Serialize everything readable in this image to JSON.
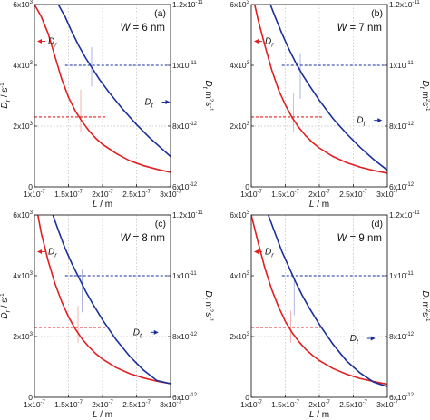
{
  "chart_data": [
    {
      "type": "line",
      "panel_label": "(a)",
      "annotation": "W = 6 nm",
      "xlabel": "L / m",
      "ylabel_left": "D_r / s^-1",
      "ylabel_right": "D_t / m^2 s^-1",
      "xlim": [
        1e-07,
        3e-07
      ],
      "ylim_left": [
        0,
        6000
      ],
      "ylim_right": [
        6e-12,
        1.2e-11
      ],
      "x_ticks": [
        {
          "m": "1",
          "e": "-7"
        },
        {
          "m": "1.5",
          "e": "-7"
        },
        {
          "m": "2",
          "e": "-7"
        },
        {
          "m": "2.5",
          "e": "-7"
        },
        {
          "m": "3",
          "e": "-7"
        }
      ],
      "y_ticks_left": [
        {
          "m": "",
          "e": "",
          "v": "0"
        },
        {
          "m": "2",
          "e": "3"
        },
        {
          "m": "4",
          "e": "3"
        },
        {
          "m": "6",
          "e": "3"
        }
      ],
      "y_ticks_right": [
        {
          "m": "6",
          "e": "-12"
        },
        {
          "m": "8",
          "e": "-12"
        },
        {
          "m": "1",
          "e": "-11"
        },
        {
          "m": "1.2",
          "e": "-11"
        }
      ],
      "series": [
        {
          "name": "D_r",
          "axis": "left",
          "color": "#e02020",
          "x": [
            1e-07,
            1.1e-07,
            1.2e-07,
            1.3e-07,
            1.4e-07,
            1.5e-07,
            1.6e-07,
            1.7e-07,
            1.8e-07,
            1.9e-07,
            2e-07,
            2.2e-07,
            2.4e-07,
            2.6e-07,
            2.8e-07,
            3e-07
          ],
          "y": [
            6000,
            5600,
            5050,
            4300,
            3550,
            2950,
            2500,
            2150,
            1850,
            1600,
            1400,
            1100,
            860,
            700,
            580,
            480
          ]
        },
        {
          "name": "D_t",
          "axis": "right",
          "color": "#1a2f9c",
          "x": [
            1.35e-07,
            1.45e-07,
            1.55e-07,
            1.65e-07,
            1.75e-07,
            1.85e-07,
            1.95e-07,
            2.1e-07,
            2.3e-07,
            2.5e-07,
            2.7e-07,
            2.9e-07,
            3e-07
          ],
          "y": [
            1.2e-11,
            1.16e-11,
            1.11e-11,
            1.065e-11,
            1.025e-11,
            9.9e-12,
            9.55e-12,
            9.1e-12,
            8.55e-12,
            8.05e-12,
            7.6e-12,
            7.2e-12,
            7e-12
          ]
        }
      ],
      "ref_lines": {
        "red_y": 2300,
        "red_x_end": 2.05e-07,
        "blue_y": 1e-11,
        "blue_x_start": 1.45e-07,
        "gray_y_left": 2000,
        "vert_red_x": 1.68e-07,
        "vert_red_top": 3200,
        "vert_blue_x": 1.84e-07,
        "vert_blue_top": 1.06e-11,
        "vert_blue_bottom": 9.3e-12
      },
      "legend": {
        "left_label": "D",
        "left_sub": "r",
        "right_label": "D",
        "right_sub": "t",
        "left_pos": {
          "x": 1.08e-07,
          "y": 4700
        },
        "right_pos": {
          "x": 2.62e-07,
          "y": 8.7e-12
        }
      }
    },
    {
      "type": "line",
      "panel_label": "(b)",
      "annotation": "W = 7 nm",
      "xlabel": "L / m",
      "ylabel_left": "",
      "ylabel_right": "D_t / m^2 s^-1",
      "xlim": [
        1e-07,
        3e-07
      ],
      "ylim_left": [
        0,
        6000
      ],
      "ylim_right": [
        6e-12,
        1.2e-11
      ],
      "x_ticks": [
        {
          "m": "1",
          "e": "-7"
        },
        {
          "m": "1.5",
          "e": "-7"
        },
        {
          "m": "2",
          "e": "-7"
        },
        {
          "m": "2.5",
          "e": "-7"
        },
        {
          "m": "3",
          "e": "-7"
        }
      ],
      "y_ticks_left": [
        {
          "m": "",
          "e": "",
          "v": "0"
        },
        {
          "m": "2",
          "e": "3"
        },
        {
          "m": "4",
          "e": "3"
        },
        {
          "m": "6",
          "e": "3"
        }
      ],
      "y_ticks_right": [
        {
          "m": "6",
          "e": "-12"
        },
        {
          "m": "8",
          "e": "-12"
        },
        {
          "m": "1",
          "e": "-11"
        },
        {
          "m": "1.2",
          "e": "-11"
        }
      ],
      "series": [
        {
          "name": "D_r",
          "axis": "left",
          "color": "#e02020",
          "x": [
            1.05e-07,
            1.1e-07,
            1.2e-07,
            1.3e-07,
            1.4e-07,
            1.5e-07,
            1.6e-07,
            1.7e-07,
            1.8e-07,
            1.9e-07,
            2e-07,
            2.2e-07,
            2.4e-07,
            2.6e-07,
            2.8e-07,
            3e-07
          ],
          "y": [
            6000,
            5500,
            4650,
            3850,
            3200,
            2700,
            2280,
            1950,
            1680,
            1460,
            1280,
            1000,
            800,
            650,
            540,
            450
          ]
        },
        {
          "name": "D_t",
          "axis": "right",
          "color": "#1a2f9c",
          "x": [
            1.28e-07,
            1.35e-07,
            1.45e-07,
            1.55e-07,
            1.65e-07,
            1.75e-07,
            1.85e-07,
            2e-07,
            2.2e-07,
            2.4e-07,
            2.6e-07,
            2.8e-07,
            3e-07
          ],
          "y": [
            1.2e-11,
            1.16e-11,
            1.105e-11,
            1.055e-11,
            1.01e-11,
            9.7e-12,
            9.35e-12,
            8.85e-12,
            8.25e-12,
            7.75e-12,
            7.3e-12,
            6.9e-12,
            6.55e-12
          ]
        }
      ],
      "ref_lines": {
        "red_y": 2300,
        "red_x_end": 2.05e-07,
        "blue_y": 1e-11,
        "blue_x_start": 1.45e-07,
        "gray_y_left": 2000,
        "vert_red_x": 1.62e-07,
        "vert_red_top": 3100,
        "vert_blue_x": 1.72e-07,
        "vert_blue_top": 1.04e-11,
        "vert_blue_bottom": 8.9e-12
      },
      "legend": {
        "left_label": "D",
        "left_sub": "r",
        "right_label": "D",
        "right_sub": "t",
        "left_pos": {
          "x": 1.08e-07,
          "y": 4700
        },
        "right_pos": {
          "x": 2.55e-07,
          "y": 8.1e-12
        }
      }
    },
    {
      "type": "line",
      "panel_label": "(c)",
      "annotation": "W = 8 nm",
      "xlabel": "L / m",
      "ylabel_left": "D_r / s^-1",
      "ylabel_right": "D_t / m^2 s^-1",
      "xlim": [
        1e-07,
        3e-07
      ],
      "ylim_left": [
        0,
        6000
      ],
      "ylim_right": [
        6e-12,
        1.2e-11
      ],
      "x_ticks": [
        {
          "m": "1",
          "e": "-7"
        },
        {
          "m": "1.5",
          "e": "-7"
        },
        {
          "m": "2",
          "e": "-7"
        },
        {
          "m": "2.5",
          "e": "-7"
        },
        {
          "m": "3",
          "e": "-7"
        }
      ],
      "y_ticks_left": [
        {
          "m": "",
          "e": "",
          "v": "0"
        },
        {
          "m": "2",
          "e": "3"
        },
        {
          "m": "4",
          "e": "3"
        },
        {
          "m": "6",
          "e": "3"
        }
      ],
      "y_ticks_right": [
        {
          "m": "6",
          "e": "-12"
        },
        {
          "m": "8",
          "e": "-12"
        },
        {
          "m": "1",
          "e": "-11"
        },
        {
          "m": "1.2",
          "e": "-11"
        }
      ],
      "series": [
        {
          "name": "D_r",
          "axis": "left",
          "color": "#e02020",
          "x": [
            1.05e-07,
            1.1e-07,
            1.2e-07,
            1.3e-07,
            1.4e-07,
            1.5e-07,
            1.6e-07,
            1.7e-07,
            1.8e-07,
            1.9e-07,
            2e-07,
            2.2e-07,
            2.4e-07,
            2.6e-07,
            2.8e-07,
            3e-07
          ],
          "y": [
            6000,
            5400,
            4500,
            3750,
            3150,
            2650,
            2250,
            1920,
            1660,
            1440,
            1260,
            980,
            780,
            640,
            530,
            450
          ]
        },
        {
          "name": "D_t",
          "axis": "right",
          "color": "#1a2f9c",
          "x": [
            1.27e-07,
            1.35e-07,
            1.45e-07,
            1.55e-07,
            1.65e-07,
            1.75e-07,
            1.85e-07,
            2e-07,
            2.2e-07,
            2.4e-07,
            2.6e-07,
            2.8e-07,
            3e-07
          ],
          "y": [
            1.2e-11,
            1.15e-11,
            1.09e-11,
            1.04e-11,
            9.95e-12,
            9.5e-12,
            9.1e-12,
            8.55e-12,
            7.9e-12,
            7.35e-12,
            6.9e-12,
            6.55e-12,
            6.45e-12
          ]
        }
      ],
      "ref_lines": {
        "red_y": 2300,
        "red_x_end": 2.05e-07,
        "blue_y": 1e-11,
        "blue_x_start": 1.45e-07,
        "gray_y_left": 2000,
        "vert_red_x": 1.64e-07,
        "vert_red_top": 3000,
        "vert_blue_x": 1.7e-07,
        "vert_blue_top": 1.02e-11,
        "vert_blue_bottom": 8.8e-12
      },
      "legend": {
        "left_label": "D",
        "left_sub": "r",
        "right_label": "D",
        "right_sub": "t",
        "left_pos": {
          "x": 1.08e-07,
          "y": 4700
        },
        "right_pos": {
          "x": 2.45e-07,
          "y": 8.05e-12
        }
      }
    },
    {
      "type": "line",
      "panel_label": "(d)",
      "annotation": "W = 9 nm",
      "xlabel": "L / m",
      "ylabel_left": "",
      "ylabel_right": "D_t / m^2 s^-1",
      "xlim": [
        1e-07,
        3e-07
      ],
      "ylim_left": [
        0,
        6000
      ],
      "ylim_right": [
        6e-12,
        1.2e-11
      ],
      "x_ticks": [
        {
          "m": "1",
          "e": "-7"
        },
        {
          "m": "1.5",
          "e": "-7"
        },
        {
          "m": "2",
          "e": "-7"
        },
        {
          "m": "2.5",
          "e": "-7"
        },
        {
          "m": "3",
          "e": "-7"
        }
      ],
      "y_ticks_left": [
        {
          "m": "",
          "e": "",
          "v": "0"
        },
        {
          "m": "2",
          "e": "3"
        },
        {
          "m": "4",
          "e": "3"
        },
        {
          "m": "6",
          "e": "3"
        }
      ],
      "y_ticks_right": [
        {
          "m": "6",
          "e": "-12"
        },
        {
          "m": "8",
          "e": "-12"
        },
        {
          "m": "1",
          "e": "-11"
        },
        {
          "m": "1.2",
          "e": "-11"
        }
      ],
      "series": [
        {
          "name": "D_r",
          "axis": "left",
          "color": "#e02020",
          "x": [
            1e-07,
            1.1e-07,
            1.2e-07,
            1.3e-07,
            1.4e-07,
            1.5e-07,
            1.6e-07,
            1.7e-07,
            1.8e-07,
            1.9e-07,
            2e-07,
            2.2e-07,
            2.4e-07,
            2.6e-07,
            2.8e-07,
            3e-07
          ],
          "y": [
            6000,
            5100,
            4250,
            3550,
            2980,
            2500,
            2130,
            1830,
            1580,
            1380,
            1210,
            950,
            760,
            620,
            520,
            430
          ]
        },
        {
          "name": "D_t",
          "axis": "right",
          "color": "#1a2f9c",
          "x": [
            1.25e-07,
            1.35e-07,
            1.45e-07,
            1.55e-07,
            1.65e-07,
            1.75e-07,
            1.85e-07,
            2e-07,
            2.2e-07,
            2.4e-07,
            2.6e-07,
            2.8e-07,
            3e-07
          ],
          "y": [
            1.2e-11,
            1.14e-11,
            1.08e-11,
            1.03e-11,
            9.8e-12,
            9.35e-12,
            8.95e-12,
            8.4e-12,
            7.75e-12,
            7.2e-12,
            6.8e-12,
            6.5e-12,
            6.35e-12
          ]
        }
      ],
      "ref_lines": {
        "red_y": 2300,
        "red_x_end": 2.05e-07,
        "blue_y": 1e-11,
        "blue_x_start": 1.45e-07,
        "gray_y_left": 2000,
        "vert_red_x": 1.58e-07,
        "vert_red_top": 2850,
        "vert_blue_x": 1.63e-07,
        "vert_blue_top": 9.95e-12,
        "vert_blue_bottom": 8.7e-12
      },
      "legend": {
        "left_label": "D",
        "left_sub": "r",
        "right_label": "D",
        "right_sub": "t",
        "left_pos": {
          "x": 1.08e-07,
          "y": 4700
        },
        "right_pos": {
          "x": 2.45e-07,
          "y": 7.85e-12
        }
      }
    }
  ]
}
